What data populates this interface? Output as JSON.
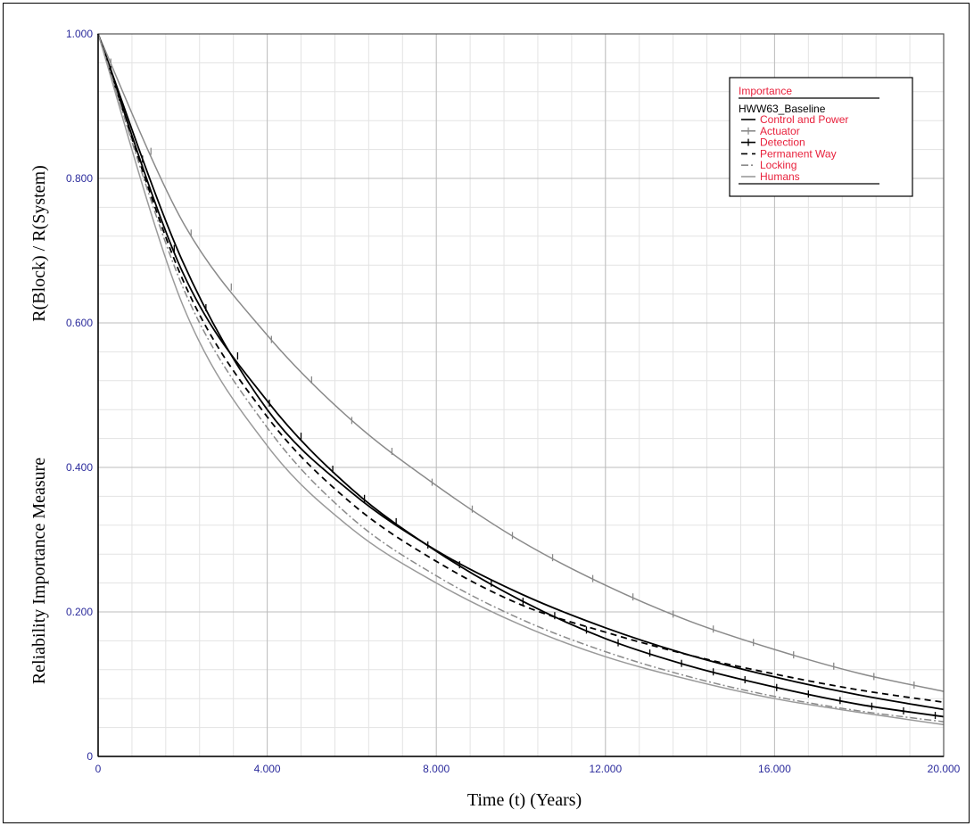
{
  "chart_data": {
    "type": "line",
    "title": "",
    "xlabel": "Time (t) (Years)",
    "ylabel_left": "Reliability Importance Measure",
    "ylabel_right": "R(Block) / R(System)",
    "xlim": [
      0,
      20
    ],
    "ylim": [
      0,
      1
    ],
    "x_ticks": [
      0,
      4,
      8,
      12,
      16,
      20
    ],
    "x_tick_labels": [
      "0",
      "4.000",
      "8.000",
      "12.000",
      "16.000",
      "20.000"
    ],
    "y_ticks": [
      0,
      0.2,
      0.4,
      0.6,
      0.8,
      1.0
    ],
    "y_tick_labels": [
      "0",
      "0.200",
      "0.400",
      "0.600",
      "0.800",
      "1.000"
    ],
    "grid": true,
    "legend_placement": "top-right",
    "legend": {
      "title": "Importance",
      "subtitle": "HWW63_Baseline"
    },
    "series": [
      {
        "name": "Control and Power",
        "style": "solid",
        "color": "#000000",
        "x": [
          0,
          2,
          4,
          6,
          8,
          10,
          12,
          14,
          16,
          18,
          20
        ],
        "values": [
          1.0,
          0.685,
          0.48,
          0.365,
          0.285,
          0.225,
          0.178,
          0.14,
          0.11,
          0.085,
          0.065
        ]
      },
      {
        "name": "Actuator",
        "style": "solid-plus",
        "color": "#8a8a8a",
        "x": [
          0,
          2,
          4,
          6,
          8,
          10,
          12,
          14,
          16,
          18,
          20
        ],
        "values": [
          1.0,
          0.74,
          0.583,
          0.465,
          0.375,
          0.298,
          0.237,
          0.187,
          0.148,
          0.115,
          0.09
        ]
      },
      {
        "name": "Detection",
        "style": "solid-plus",
        "color": "#000000",
        "x": [
          0,
          2,
          4,
          6,
          8,
          10,
          12,
          14,
          16,
          18,
          20
        ],
        "values": [
          1.0,
          0.67,
          0.492,
          0.37,
          0.284,
          0.216,
          0.163,
          0.125,
          0.096,
          0.072,
          0.055
        ]
      },
      {
        "name": "Permanent Way",
        "style": "dashed",
        "color": "#000000",
        "x": [
          0,
          2,
          4,
          6,
          8,
          10,
          12,
          14,
          16,
          18,
          20
        ],
        "values": [
          1.0,
          0.66,
          0.47,
          0.35,
          0.27,
          0.21,
          0.172,
          0.14,
          0.114,
          0.092,
          0.075
        ]
      },
      {
        "name": "Locking",
        "style": "dashdot",
        "color": "#8a8a8a",
        "x": [
          0,
          2,
          4,
          6,
          8,
          10,
          12,
          14,
          16,
          18,
          20
        ],
        "values": [
          1.0,
          0.65,
          0.455,
          0.33,
          0.25,
          0.19,
          0.145,
          0.11,
          0.083,
          0.063,
          0.048
        ]
      },
      {
        "name": "Humans",
        "style": "solid",
        "color": "#9a9a9a",
        "x": [
          0,
          2,
          4,
          6,
          8,
          10,
          12,
          14,
          16,
          18,
          20
        ],
        "values": [
          1.0,
          0.625,
          0.43,
          0.315,
          0.24,
          0.182,
          0.138,
          0.106,
          0.08,
          0.061,
          0.044
        ]
      }
    ],
    "colors": {
      "tick_labels": "#2b2b9c",
      "legend_items": "#e8213c",
      "grid": "#bdbdbd"
    }
  }
}
